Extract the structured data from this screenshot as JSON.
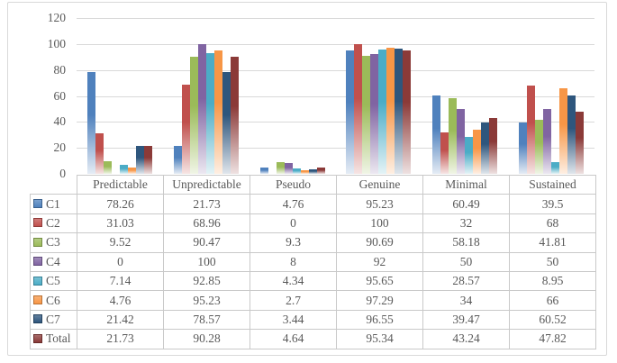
{
  "chart_data": {
    "type": "bar",
    "title": "",
    "xlabel": "",
    "ylabel": "",
    "categories": [
      "Predictable",
      "Unpredictable",
      "Pseudo",
      "Genuine",
      "Minimal",
      "Sustained"
    ],
    "series": [
      {
        "name": "C1",
        "color": "#4F81BD",
        "values": [
          78.26,
          21.73,
          4.76,
          95.23,
          60.49,
          39.5
        ],
        "labels": [
          "78.26",
          "21.73",
          "4.76",
          "95.23",
          "60.49",
          "39.5"
        ]
      },
      {
        "name": "C2",
        "color": "#C0504D",
        "values": [
          31.03,
          68.96,
          0,
          100,
          32,
          68
        ],
        "labels": [
          "31.03",
          "68.96",
          "0",
          "100",
          "32",
          "68"
        ]
      },
      {
        "name": "C3",
        "color": "#9BBB59",
        "values": [
          9.52,
          90.47,
          9.3,
          90.69,
          58.18,
          41.81
        ],
        "labels": [
          "9.52",
          "90.47",
          "9.3",
          "90.69",
          "58.18",
          "41.81"
        ]
      },
      {
        "name": "C4",
        "color": "#8064A2",
        "values": [
          0,
          100,
          8,
          92,
          50,
          50
        ],
        "labels": [
          "0",
          "100",
          "8",
          "92",
          "50",
          "50"
        ]
      },
      {
        "name": "C5",
        "color": "#4BACC6",
        "values": [
          7.14,
          92.85,
          4.34,
          95.65,
          28.57,
          8.95
        ],
        "labels": [
          "7.14",
          "92.85",
          "4.34",
          "95.65",
          "28.57",
          "8.95"
        ]
      },
      {
        "name": "C6",
        "color": "#F79646",
        "values": [
          4.76,
          95.23,
          2.7,
          97.29,
          34,
          66
        ],
        "labels": [
          "4.76",
          "95.23",
          "2.7",
          "97.29",
          "34",
          "66"
        ]
      },
      {
        "name": "C7",
        "color": "#2E567D",
        "values": [
          21.42,
          78.57,
          3.44,
          96.55,
          39.47,
          60.52
        ],
        "labels": [
          "21.42",
          "78.57",
          "3.44",
          "96.55",
          "39.47",
          "60.52"
        ]
      },
      {
        "name": "Total",
        "color": "#8B3A38",
        "values": [
          21.73,
          90.28,
          4.64,
          95.34,
          43.24,
          47.82
        ],
        "labels": [
          "21.73",
          "90.28",
          "4.64",
          "95.34",
          "43.24",
          "47.82"
        ]
      }
    ],
    "ylim": [
      0,
      120
    ],
    "ytick_labels": [
      "120",
      "100",
      "80",
      "60",
      "40",
      "20",
      "0"
    ],
    "grid": true,
    "legend_position": "table-row-headers",
    "data_table_shown": true
  },
  "style_colors": {
    "gridline": "#d9d9d9",
    "chart_border": "#d9d9d9",
    "table_border": "#c9c9c9",
    "text": "#595959"
  }
}
